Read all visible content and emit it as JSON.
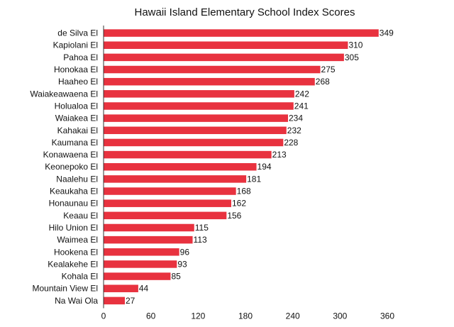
{
  "chart_data": {
    "type": "bar",
    "orientation": "horizontal",
    "title": "Hawaii Island Elementary School Index Scores",
    "xlabel": "",
    "ylabel": "",
    "categories": [
      "de Silva El",
      "Kapiolani El",
      "Pahoa El",
      "Honokaa El",
      "Haaheo El",
      "Waiakeawaena El",
      "Holualoa El",
      "Waiakea El",
      "Kahakai El",
      "Kaumana El",
      "Konawaena El",
      "Keonepoko El",
      "Naalehu El",
      "Keaukaha El",
      "Honaunau El",
      "Keaau El",
      "Hilo Union El",
      "Waimea El",
      "Hookena El",
      "Kealakehe El",
      "Kohala El",
      "Mountain View El",
      "Na Wai Ola"
    ],
    "values": [
      349,
      310,
      305,
      275,
      268,
      242,
      241,
      234,
      232,
      228,
      213,
      194,
      181,
      168,
      162,
      156,
      115,
      113,
      96,
      93,
      85,
      44,
      27
    ],
    "xlim": [
      0,
      360
    ],
    "xticks": [
      0,
      60,
      120,
      180,
      240,
      300,
      360
    ],
    "grid": false,
    "legend": "none",
    "bar_color": "#e8323f"
  }
}
